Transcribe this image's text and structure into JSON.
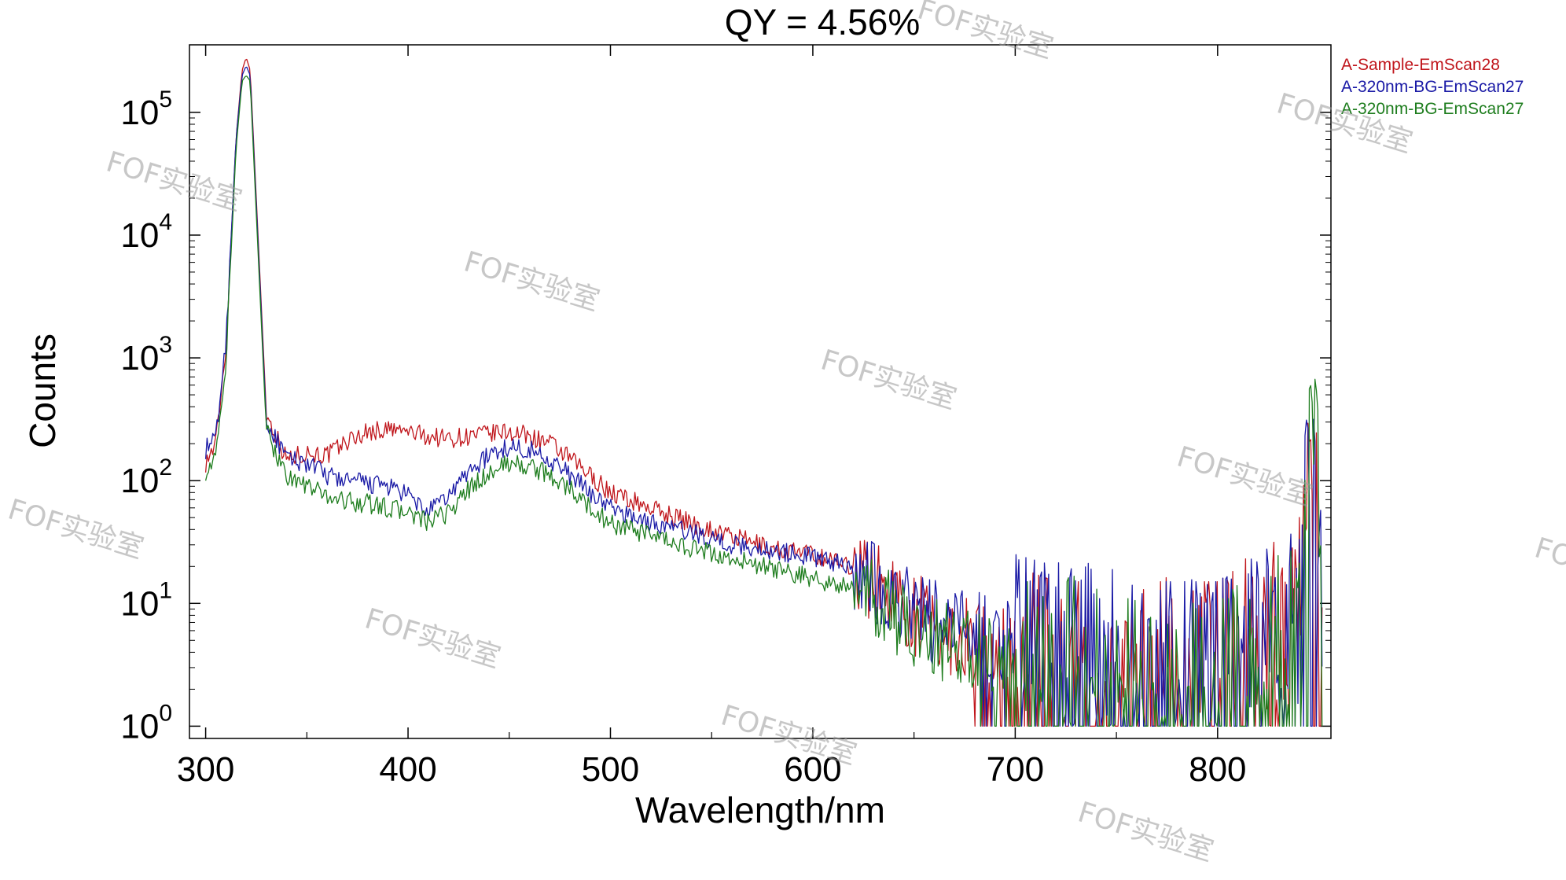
{
  "chart_data": {
    "type": "line",
    "title": "QY = 4.56%",
    "xlabel": "Wavelength/nm",
    "ylabel": "Counts",
    "xlim": [
      292,
      856
    ],
    "ylim_log10": [
      -0.1,
      5.55
    ],
    "y_scale": "log",
    "x_ticks": [
      "300",
      "400",
      "500",
      "600",
      "700",
      "800"
    ],
    "y_ticks": [
      {
        "base": "10",
        "exp": "0"
      },
      {
        "base": "10",
        "exp": "1"
      },
      {
        "base": "10",
        "exp": "2"
      },
      {
        "base": "10",
        "exp": "3"
      },
      {
        "base": "10",
        "exp": "4"
      },
      {
        "base": "10",
        "exp": "5"
      }
    ],
    "legend_position": "top-right",
    "grid": false,
    "series": [
      {
        "name": "A-Sample-EmScan28",
        "color": "#c0161c",
        "x": [
          300,
          305,
          310,
          315,
          318,
          320,
          322,
          325,
          330,
          340,
          350,
          360,
          370,
          380,
          390,
          400,
          410,
          420,
          430,
          440,
          450,
          460,
          470,
          480,
          490,
          500,
          520,
          540,
          560,
          580,
          600,
          620,
          640,
          660,
          680,
          700,
          720,
          740,
          760,
          780,
          800,
          820,
          840,
          848,
          850,
          852
        ],
        "y": [
          140,
          200,
          1200,
          60000,
          220000,
          280000,
          220000,
          20000,
          350,
          150,
          170,
          160,
          210,
          250,
          260,
          250,
          230,
          220,
          230,
          240,
          250,
          230,
          200,
          150,
          110,
          80,
          60,
          45,
          35,
          28,
          25,
          20,
          12,
          6,
          5,
          4,
          3,
          3,
          3,
          3,
          3,
          5,
          8,
          700,
          60,
          2
        ]
      },
      {
        "name": "A-320nm-BG-EmScan27",
        "color": "#1a1aa6",
        "x": [
          300,
          305,
          310,
          315,
          318,
          320,
          322,
          325,
          330,
          340,
          350,
          360,
          370,
          380,
          390,
          400,
          410,
          420,
          430,
          440,
          450,
          460,
          470,
          480,
          490,
          500,
          520,
          540,
          560,
          580,
          600,
          620,
          640,
          660,
          680,
          700,
          720,
          740,
          760,
          780,
          800,
          820,
          840,
          848,
          850,
          852
        ],
        "y": [
          180,
          220,
          1300,
          60000,
          200000,
          240000,
          200000,
          18000,
          300,
          150,
          140,
          110,
          100,
          95,
          90,
          75,
          55,
          75,
          120,
          160,
          190,
          180,
          150,
          110,
          80,
          60,
          45,
          38,
          30,
          27,
          24,
          20,
          12,
          7,
          6,
          5,
          4,
          4,
          3,
          3,
          3,
          5,
          8,
          650,
          60,
          2
        ]
      },
      {
        "name": "A-320nm-BG-EmScan27",
        "color": "#1e7d1e",
        "x": [
          300,
          305,
          310,
          315,
          318,
          320,
          322,
          325,
          330,
          340,
          350,
          360,
          370,
          380,
          390,
          400,
          410,
          420,
          430,
          440,
          450,
          460,
          470,
          480,
          490,
          500,
          520,
          540,
          560,
          580,
          600,
          620,
          640,
          660,
          680,
          700,
          720,
          740,
          760,
          780,
          800,
          820,
          840,
          848,
          850,
          852
        ],
        "y": [
          120,
          150,
          900,
          50000,
          180000,
          200000,
          180000,
          15000,
          250,
          110,
          90,
          75,
          68,
          65,
          60,
          55,
          45,
          55,
          85,
          115,
          140,
          130,
          110,
          85,
          60,
          45,
          35,
          28,
          23,
          19,
          16,
          13,
          8,
          5,
          4,
          3,
          3,
          3,
          2,
          2,
          2,
          4,
          6,
          500,
          50,
          2
        ]
      }
    ]
  },
  "watermarks": [
    "FOF实验室",
    "FOF实验室",
    "FOF实验室",
    "FOF实验室",
    "FOF实验室",
    "FOF实验室",
    "FOF实验室",
    "FOF实验室",
    "FOF实验室",
    "FOF实验室",
    "FOF实验室",
    "FO"
  ]
}
